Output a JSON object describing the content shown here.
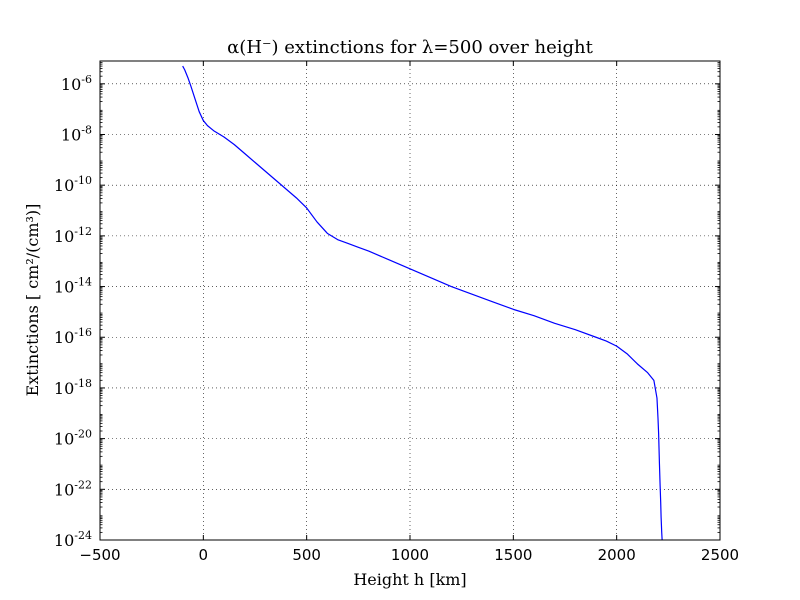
{
  "chart_data": {
    "type": "line",
    "title": "α(H⁻) extinctions for λ=500 over height",
    "xlabel": "Height h [km]",
    "ylabel": "Extinctions [ cm²/(cm³)]",
    "xlim": [
      -500,
      2500
    ],
    "ylim_log10": [
      -24,
      -5.1
    ],
    "y_scale": "log",
    "grid": true,
    "line_color": "#0000ff",
    "x_ticks": [
      -500,
      0,
      500,
      1000,
      1500,
      2000,
      2500
    ],
    "x_tick_labels": [
      "−500",
      "0",
      "500",
      "1000",
      "1500",
      "2000",
      "2500"
    ],
    "y_tick_exponents": [
      -6,
      -8,
      -10,
      -12,
      -14,
      -16,
      -18,
      -20,
      -22,
      -24
    ],
    "y_tick_base": "10",
    "series": [
      {
        "x": [
          -100,
          -90,
          -75,
          -60,
          -40,
          -20,
          0,
          20,
          50,
          100,
          150,
          200,
          250,
          300,
          350,
          400,
          450,
          500,
          550,
          600,
          650,
          700,
          750,
          800,
          900,
          1000,
          1100,
          1200,
          1300,
          1400,
          1500,
          1600,
          1700,
          1800,
          1900,
          1950,
          2000,
          2050,
          2100,
          2150,
          2180,
          2195,
          2200,
          2203,
          2205,
          2207,
          2210,
          2213,
          2215,
          2218,
          2220
        ],
        "y_log10": [
          -5.3,
          -5.45,
          -5.75,
          -6.1,
          -6.6,
          -7.1,
          -7.45,
          -7.65,
          -7.85,
          -8.1,
          -8.4,
          -8.75,
          -9.1,
          -9.45,
          -9.8,
          -10.15,
          -10.5,
          -10.9,
          -11.45,
          -11.9,
          -12.15,
          -12.3,
          -12.45,
          -12.6,
          -12.95,
          -13.3,
          -13.65,
          -14.0,
          -14.3,
          -14.6,
          -14.9,
          -15.15,
          -15.45,
          -15.7,
          -16.0,
          -16.15,
          -16.35,
          -16.65,
          -17.05,
          -17.4,
          -17.7,
          -18.4,
          -19.2,
          -19.8,
          -20.4,
          -21.0,
          -21.8,
          -22.5,
          -23.1,
          -23.7,
          -24.0
        ]
      }
    ]
  }
}
